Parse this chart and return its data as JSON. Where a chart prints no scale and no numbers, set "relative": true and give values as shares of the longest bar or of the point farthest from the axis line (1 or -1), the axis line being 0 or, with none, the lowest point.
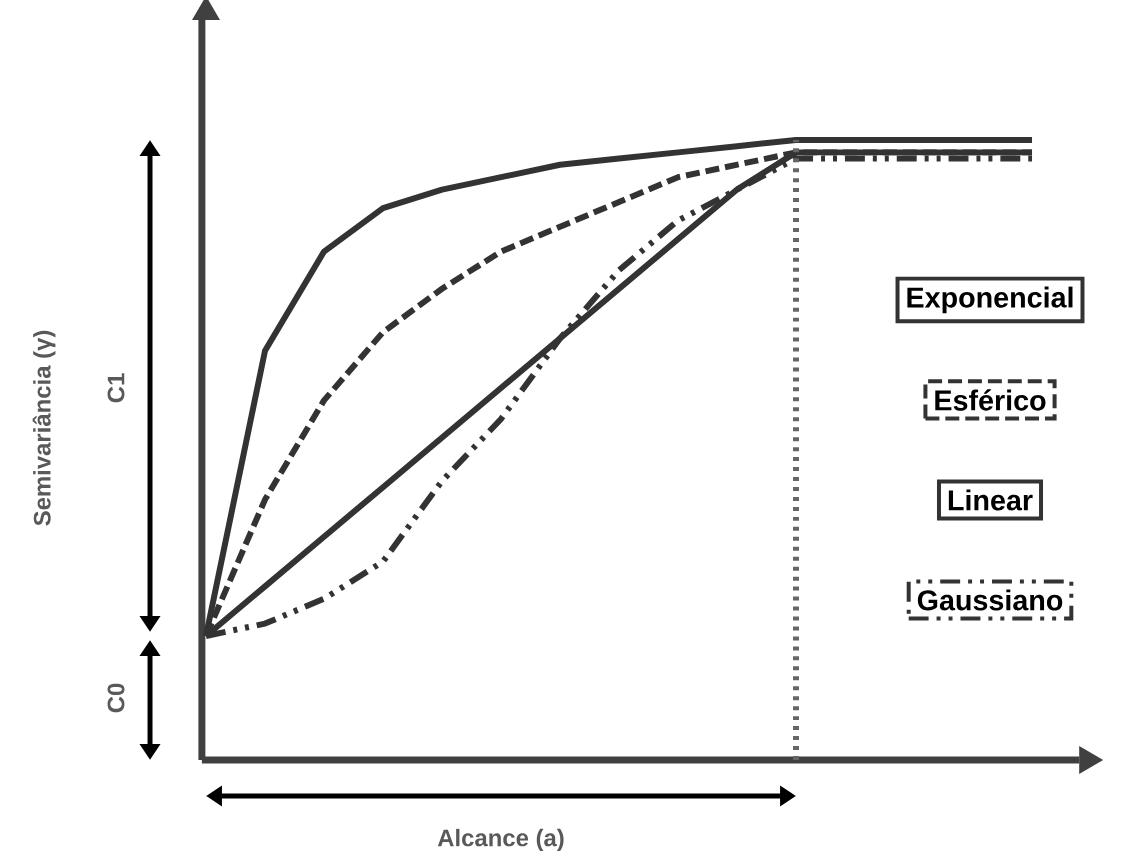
{
  "chart_data": {
    "type": "line",
    "relative": true,
    "categories": [
      null,
      null,
      null,
      null,
      null,
      null,
      null,
      null,
      null,
      null,
      null,
      null,
      null,
      null,
      null
    ],
    "series": [
      {
        "name": "Exponencial",
        "color": "#333333",
        "line_style": "solid",
        "values": [
          0.2,
          0.66,
          0.82,
          0.89,
          0.92,
          0.94,
          0.96,
          0.97,
          0.98,
          0.99,
          1,
          1,
          1,
          1,
          1
        ]
      },
      {
        "name": "Esférico",
        "color": "#333333",
        "line_style": "dashed",
        "values": [
          0.2,
          0.42,
          0.58,
          0.69,
          0.76,
          0.82,
          0.86,
          0.9,
          0.94,
          0.96,
          0.98,
          0.98,
          0.98,
          0.98,
          0.98
        ]
      },
      {
        "name": "Linear",
        "color": "#333333",
        "line_style": "solid",
        "values": [
          0.2,
          0.28,
          0.36,
          0.44,
          0.52,
          0.6,
          0.68,
          0.76,
          0.84,
          0.92,
          0.98,
          0.98,
          0.98,
          0.98,
          0.98
        ]
      },
      {
        "name": "Gaussiano",
        "color": "#333333",
        "line_style": "dashdotdotted",
        "values": [
          0.2,
          0.22,
          0.26,
          0.32,
          0.45,
          0.55,
          0.68,
          0.79,
          0.87,
          0.92,
          0.97,
          0.97,
          0.97,
          0.97,
          0.97
        ]
      }
    ],
    "annotations": [
      "C1",
      "C0",
      "Alcance (a)",
      "Semivariância (γ)"
    ],
    "legend": "right"
  }
}
